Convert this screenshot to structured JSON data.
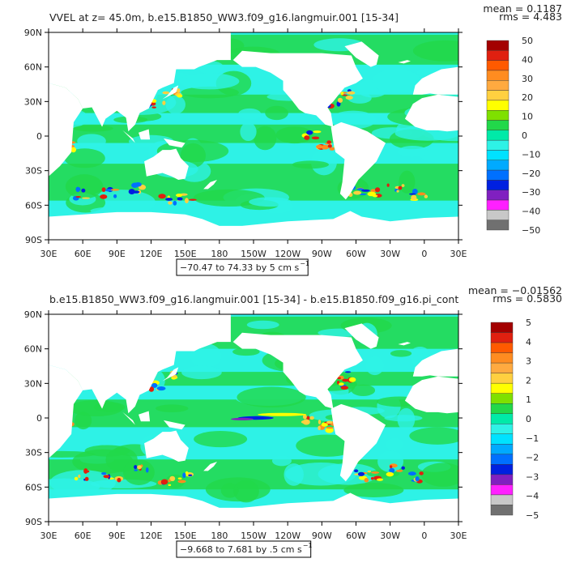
{
  "panels": [
    {
      "title": "VVEL at z=  45.0m, b.e15.B1850_WW3.f09_g16.langmuir.001 [15-34]",
      "mean_text": "mean = 0.1187",
      "rms_text": "rms = 4.483",
      "range_text": "−70.47 to 74.33 by 5 cm s",
      "units_exp": "−1",
      "y_ticks": [
        "90N",
        "60N",
        "30N",
        "0",
        "30S",
        "60S",
        "90S"
      ],
      "x_ticks": [
        "30E",
        "60E",
        "90E",
        "120E",
        "150E",
        "180",
        "150W",
        "120W",
        "90W",
        "60W",
        "30W",
        "0",
        "30E"
      ],
      "cbar_labels": [
        "50",
        "40",
        "30",
        "20",
        "10",
        "0",
        "−10",
        "−20",
        "−30",
        "−40",
        "−50"
      ]
    },
    {
      "title": "b.e15.B1850_WW3.f09_g16.langmuir.001 [15-34] - b.e15.B1850.f09_g16.pi_cont",
      "mean_text": "mean = −0.01562",
      "rms_text": "rms = 0.5830",
      "range_text": "−9.668 to 7.681 by .5 cm s",
      "units_exp": "−1",
      "y_ticks": [
        "90N",
        "60N",
        "30N",
        "0",
        "30S",
        "60S",
        "90S"
      ],
      "x_ticks": [
        "30E",
        "60E",
        "90E",
        "120E",
        "150E",
        "180",
        "150W",
        "120W",
        "90W",
        "60W",
        "30W",
        "0",
        "30E"
      ],
      "cbar_labels": [
        "5",
        "4",
        "3",
        "2",
        "1",
        "0",
        "−1",
        "−2",
        "−3",
        "−4",
        "−5"
      ]
    }
  ],
  "colorbar_colors": [
    "#a30000",
    "#e02010",
    "#ff5a00",
    "#ff8c20",
    "#ffaa40",
    "#ffd040",
    "#ffff00",
    "#7fe000",
    "#22d84a",
    "#00eaa8",
    "#2ef2e6",
    "#00e2ff",
    "#00aaff",
    "#0070ff",
    "#0020e0",
    "#8020c0",
    "#ff20ff",
    "#c8c8c8",
    "#707070"
  ],
  "chart_data": [
    {
      "type": "heatmap",
      "variable": "VVEL",
      "units": "cm s−1",
      "depth": "45.0m",
      "x_axis": {
        "ticks": [
          "30E",
          "60E",
          "90E",
          "120E",
          "150E",
          "180",
          "150W",
          "120W",
          "90W",
          "60W",
          "30W",
          "0",
          "30E"
        ],
        "range": [
          30,
          390
        ]
      },
      "y_axis": {
        "ticks": [
          "90N",
          "60N",
          "30N",
          "0",
          "30S",
          "60S",
          "90S"
        ],
        "range": [
          -90,
          90
        ]
      },
      "contour_min": -70.47,
      "contour_max": 74.33,
      "contour_interval": 5,
      "colorbar_range": [
        -50,
        50
      ],
      "mean": 0.1187,
      "rms": 4.483
    },
    {
      "type": "heatmap",
      "variable": "VVEL difference",
      "units": "cm s−1",
      "x_axis": {
        "ticks": [
          "30E",
          "60E",
          "90E",
          "120E",
          "150E",
          "180",
          "150W",
          "120W",
          "90W",
          "60W",
          "30W",
          "0",
          "30E"
        ],
        "range": [
          30,
          390
        ]
      },
      "y_axis": {
        "ticks": [
          "90N",
          "60N",
          "30N",
          "0",
          "30S",
          "60S",
          "90S"
        ],
        "range": [
          -90,
          90
        ]
      },
      "contour_min": -9.668,
      "contour_max": 7.681,
      "contour_interval": 0.5,
      "colorbar_range": [
        -5,
        5
      ],
      "mean": -0.01562,
      "rms": 0.583
    }
  ]
}
